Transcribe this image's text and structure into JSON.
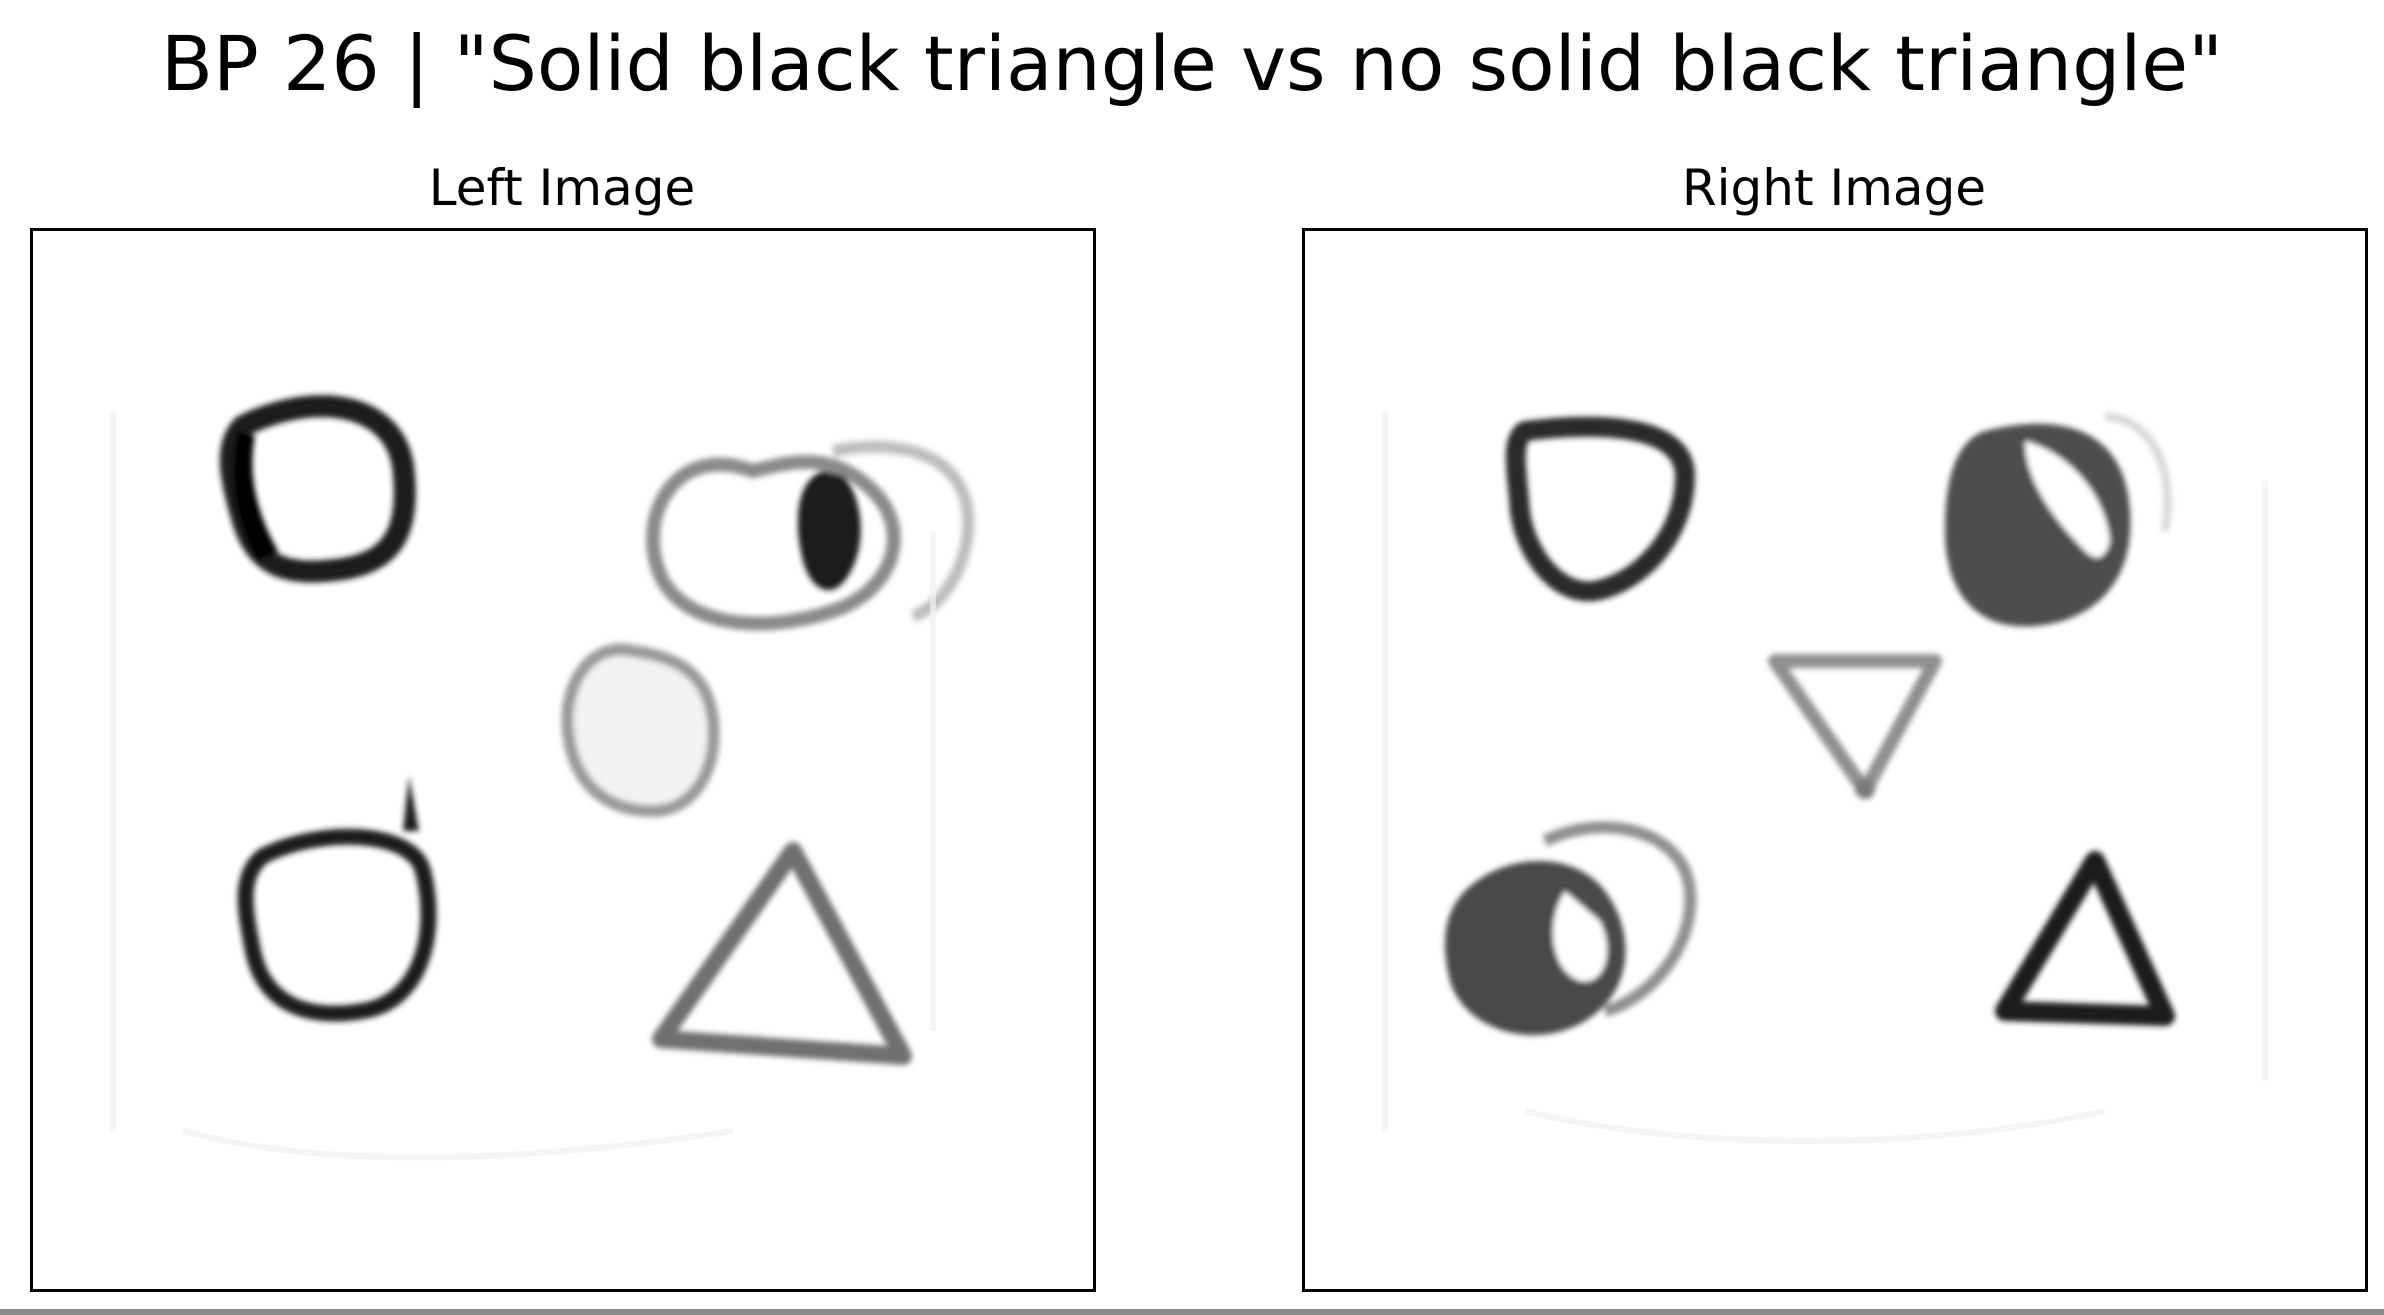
{
  "figure": {
    "title": "BP 26 | \"Solid black triangle vs no solid black triangle\""
  },
  "panels": [
    {
      "title": "Left Image"
    },
    {
      "title": "Right Image"
    }
  ]
}
